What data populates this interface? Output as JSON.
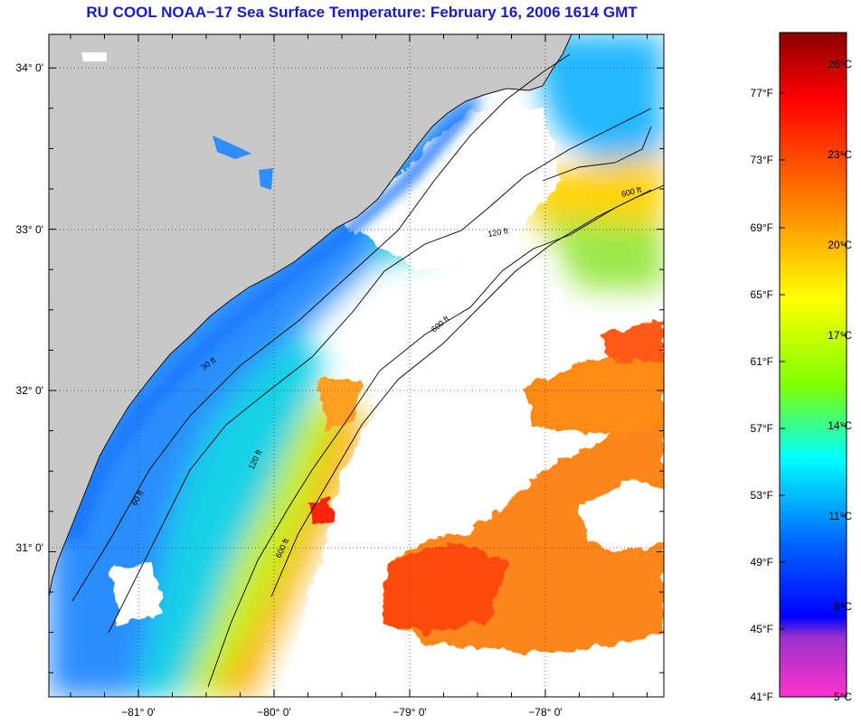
{
  "title": "RU COOL  NOAA−17  Sea Surface Temperature:  February 16, 2006 1614 GMT",
  "colors": {
    "land": "#c8c8c8",
    "cloud": "#ffffff",
    "title": "#1a1acc"
  },
  "axes": {
    "lat_labels": [
      "34° 0'",
      "33° 0'",
      "32° 0'",
      "31° 0'"
    ],
    "lon_labels": [
      "−81° 0'",
      "−80° 0'",
      "−79° 0'",
      "−78° 0'"
    ]
  },
  "contours": {
    "labels": [
      "30 ft",
      "60 ft",
      "120 ft",
      "600 ft"
    ]
  },
  "colorbar": {
    "fahrenheit": [
      "77°F",
      "73°F",
      "69°F",
      "65°F",
      "61°F",
      "57°F",
      "53°F",
      "49°F",
      "45°F",
      "41°F"
    ],
    "celsius": [
      "26°C",
      "23°C",
      "20°C",
      "17°C",
      "14°C",
      "11°C",
      "8°C",
      "5°C"
    ],
    "stops": [
      "#8b0000",
      "#ff0000",
      "#ff8c00",
      "#ffff00",
      "#7fff00",
      "#00ffff",
      "#0064ff",
      "#0000ff",
      "#9932cc",
      "#ff33cc"
    ]
  }
}
